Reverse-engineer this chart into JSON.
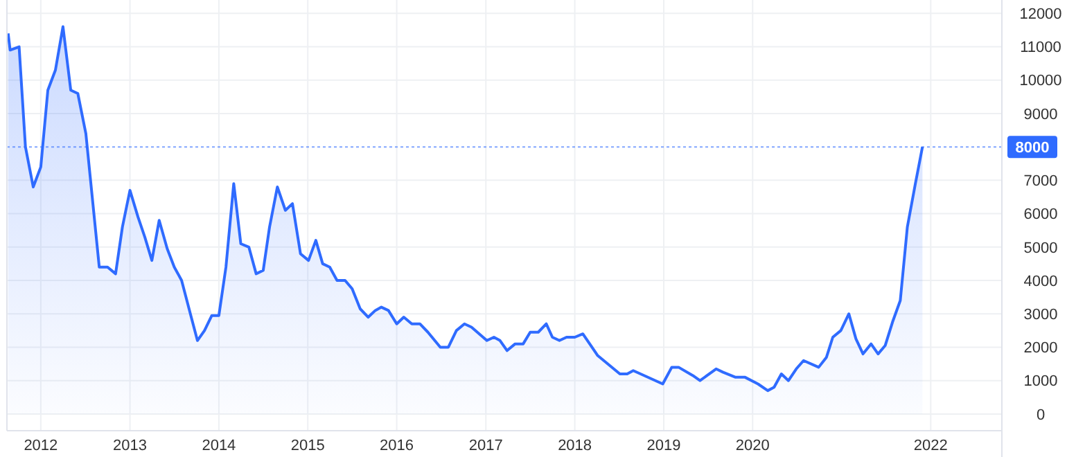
{
  "chart_data": {
    "type": "area",
    "color": "#2f6bff",
    "x": [
      "2011-08-20",
      "2011-08-28",
      "2011-10-04",
      "2011-10-30",
      "2011-12-01",
      "2012-01-01",
      "2012-01-30",
      "2012-03-01",
      "2012-04-01",
      "2012-05-03",
      "2012-06-01",
      "2012-07-04",
      "2012-08-28",
      "2012-10-01",
      "2012-11-03",
      "2012-12-01",
      "2013-01-01",
      "2013-02-03",
      "2013-03-03",
      "2013-04-01",
      "2013-05-01",
      "2013-06-03",
      "2013-07-02",
      "2013-08-01",
      "2013-09-06",
      "2013-10-05",
      "2013-11-03",
      "2013-12-03",
      "2014-01-01",
      "2014-01-30",
      "2014-03-03",
      "2014-04-01",
      "2014-05-04",
      "2014-06-03",
      "2014-07-02",
      "2014-07-28",
      "2014-08-29",
      "2014-10-01",
      "2014-10-30",
      "2014-12-02",
      "2015-01-04",
      "2015-02-03",
      "2015-03-03",
      "2015-04-01",
      "2015-05-01",
      "2015-06-03",
      "2015-07-02",
      "2015-08-04",
      "2015-09-06",
      "2015-10-05",
      "2015-10-30",
      "2015-11-28",
      "2016-01-01",
      "2016-01-30",
      "2016-03-03",
      "2016-04-05",
      "2016-05-08",
      "2016-06-28",
      "2016-07-31",
      "2016-09-02",
      "2016-10-05",
      "2016-11-03",
      "2017-01-05",
      "2017-02-03",
      "2017-02-28",
      "2017-03-29",
      "2017-05-01",
      "2017-06-03",
      "2017-07-02",
      "2017-08-04",
      "2017-09-06",
      "2017-10-01",
      "2017-10-30",
      "2017-11-28",
      "2018-01-01",
      "2018-02-03",
      "2018-04-05",
      "2018-07-05",
      "2018-08-04",
      "2018-08-29",
      "2018-12-28",
      "2019-02-03",
      "2019-03-03",
      "2019-05-01",
      "2019-05-30",
      "2019-08-04",
      "2019-09-02",
      "2019-10-23",
      "2019-12-01",
      "2020-01-23",
      "2020-03-03",
      "2020-03-29",
      "2020-04-28",
      "2020-05-27",
      "2020-06-28",
      "2020-07-28",
      "2020-09-28",
      "2020-10-30",
      "2020-11-25",
      "2020-12-28",
      "2021-01-30",
      "2021-02-28",
      "2021-03-29",
      "2021-05-01",
      "2021-05-30",
      "2021-06-28",
      "2021-07-28",
      "2021-08-29",
      "2021-09-27",
      "2021-10-30",
      "2021-11-28"
    ],
    "values": [
      11400,
      10900,
      11000,
      8000,
      6800,
      7400,
      9700,
      10300,
      11600,
      9700,
      9600,
      8400,
      4400,
      4400,
      4200,
      5600,
      6700,
      5900,
      5300,
      4600,
      5800,
      4950,
      4400,
      4000,
      3000,
      2200,
      2500,
      2950,
      2950,
      4400,
      6900,
      5100,
      5000,
      4200,
      4300,
      5600,
      6800,
      6100,
      6300,
      4800,
      4600,
      5200,
      4500,
      4400,
      4000,
      4000,
      3750,
      3150,
      2900,
      3100,
      3200,
      3100,
      2700,
      2900,
      2700,
      2700,
      2450,
      2000,
      2000,
      2500,
      2700,
      2600,
      2200,
      2300,
      2200,
      1900,
      2100,
      2100,
      2450,
      2450,
      2700,
      2300,
      2200,
      2300,
      2300,
      2400,
      1750,
      1200,
      1200,
      1300,
      900,
      1400,
      1400,
      1150,
      1000,
      1350,
      1250,
      1100,
      1100,
      900,
      700,
      800,
      1200,
      1000,
      1350,
      1600,
      1400,
      1700,
      2300,
      2500,
      3000,
      2250,
      1800,
      2100,
      1800,
      2050,
      2750,
      3400,
      5600,
      6900,
      8000
    ],
    "xlim": [
      "2011-08-15",
      "2022-10-20"
    ],
    "xticks": [
      "2012",
      "2013",
      "2014",
      "2015",
      "2016",
      "2017",
      "2018",
      "2019",
      "2020",
      "2022"
    ],
    "ylim": [
      -500,
      12400
    ],
    "yticks": [
      0,
      1000,
      2000,
      3000,
      4000,
      5000,
      6000,
      7000,
      9000,
      10000,
      11000,
      12000
    ],
    "grid": true,
    "ref_lines": [
      {
        "axis": "y",
        "value": 8000,
        "label": "8000",
        "color": "#2f6bff",
        "line_style": "dotted"
      }
    ]
  }
}
